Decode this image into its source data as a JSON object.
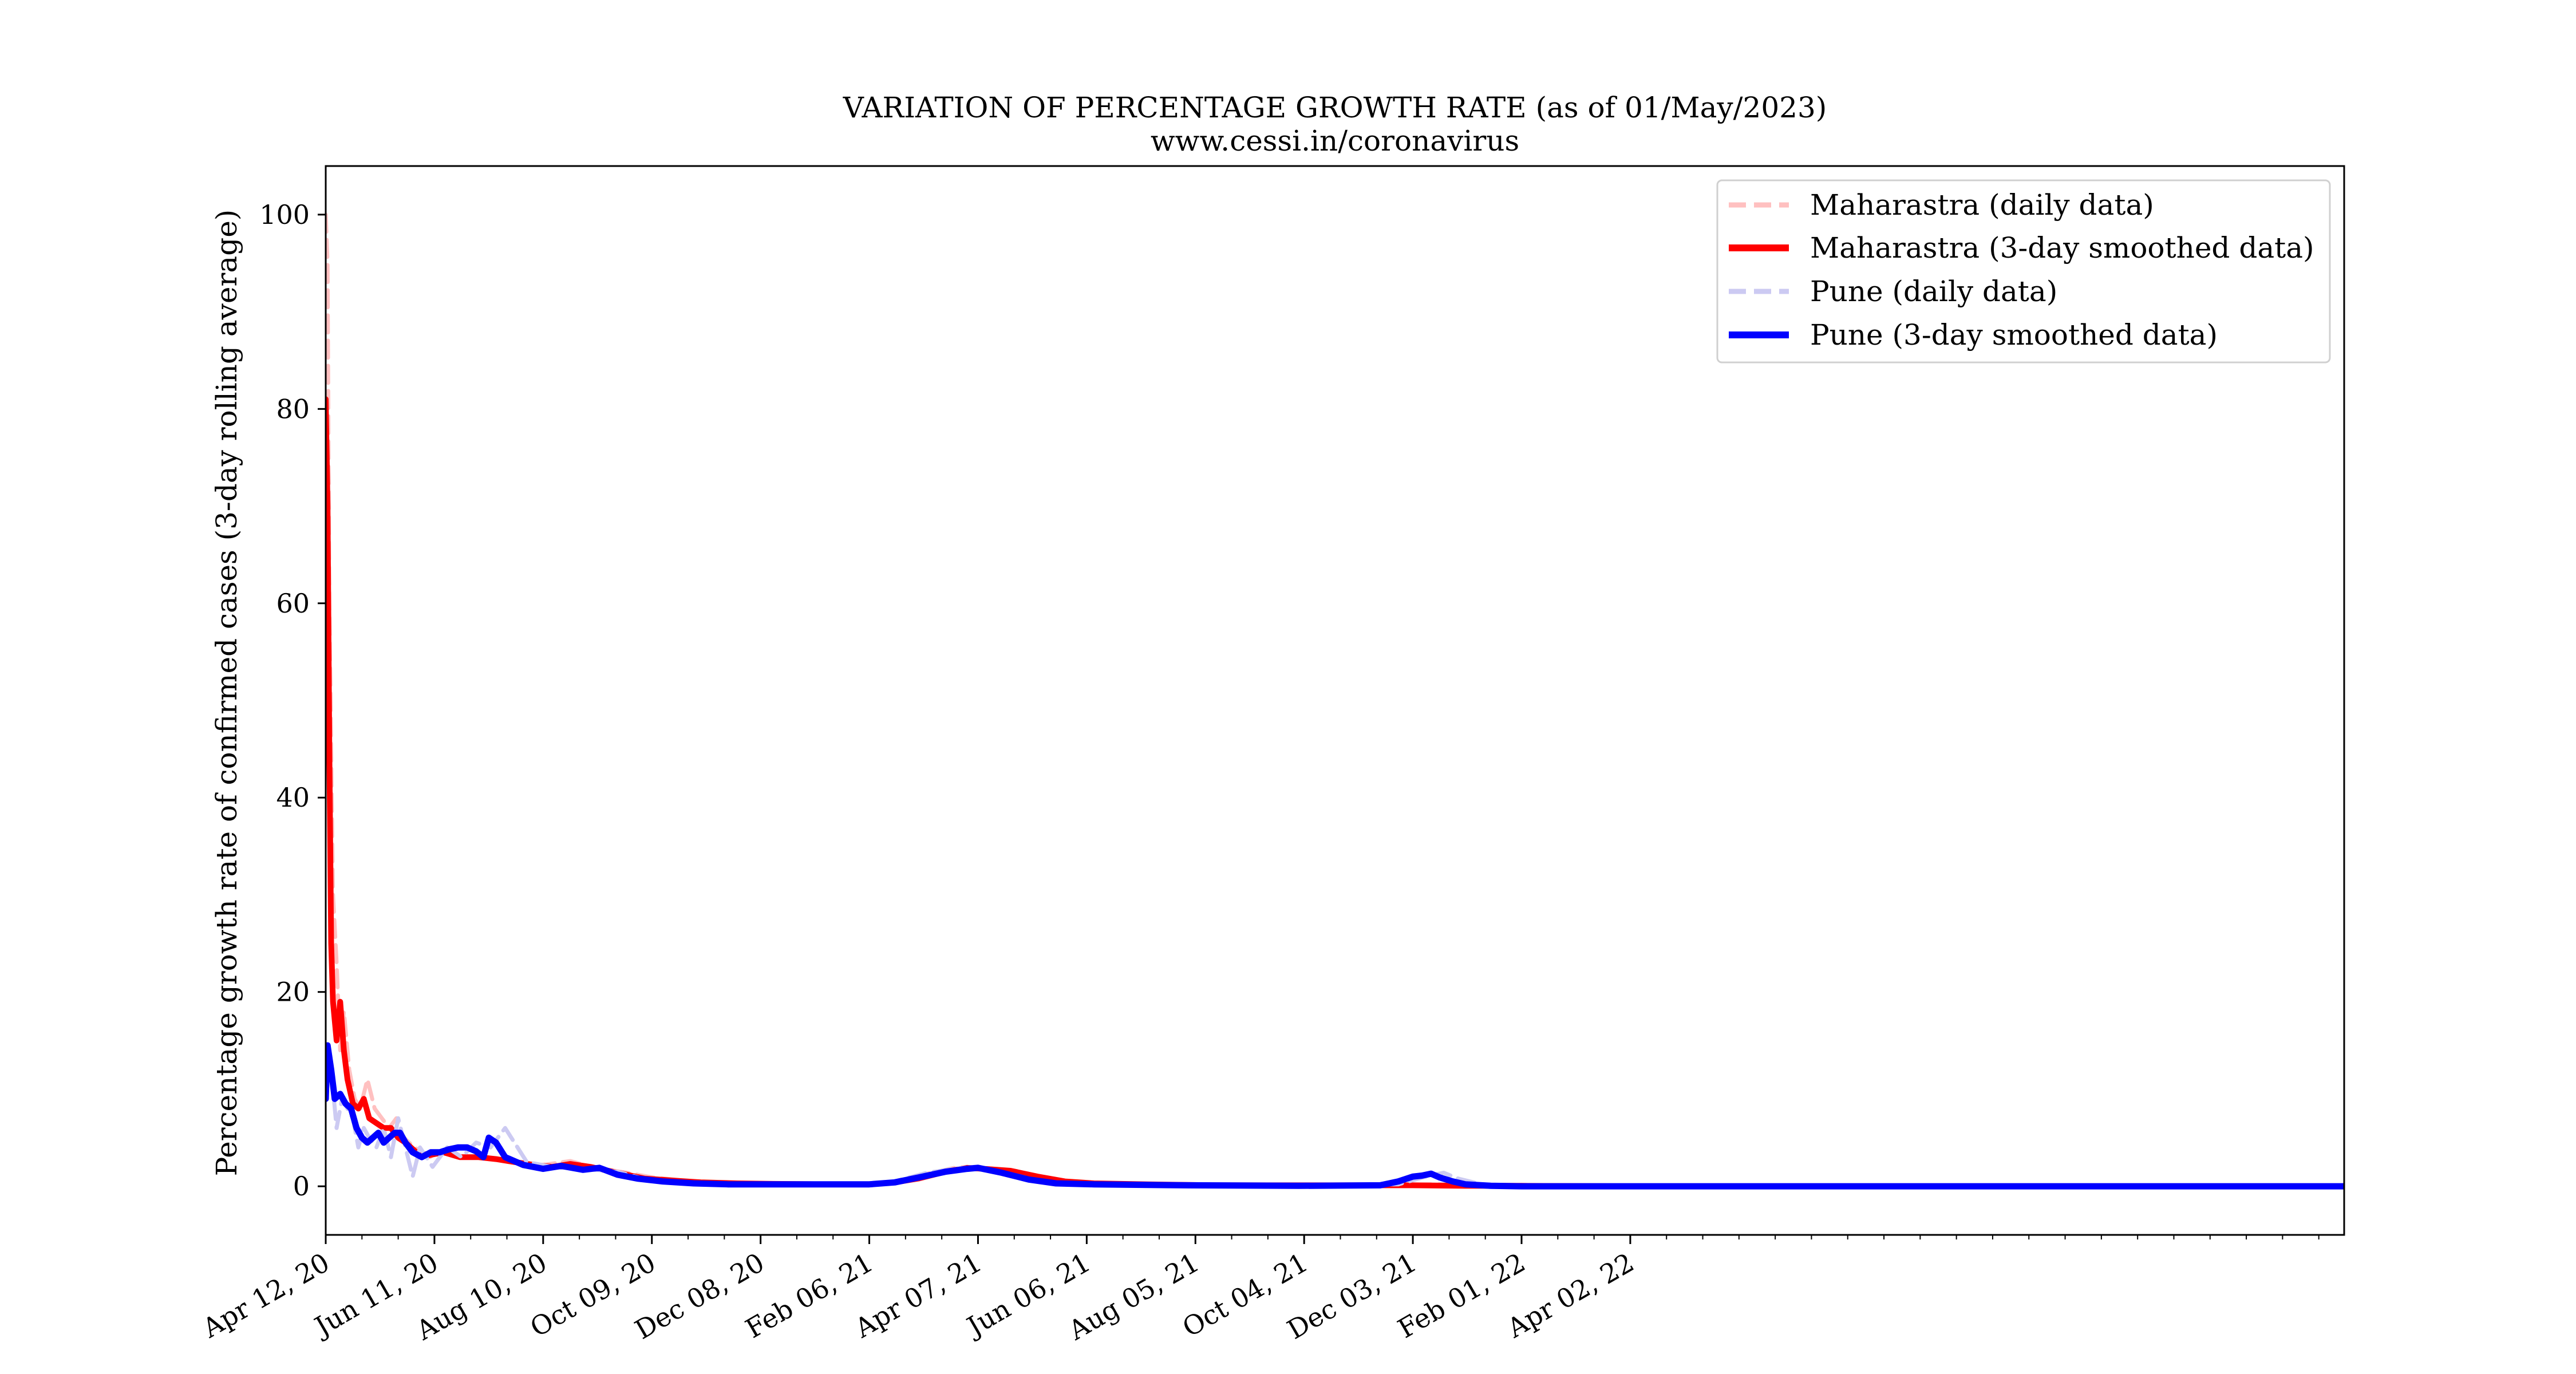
{
  "chart_data": {
    "type": "line",
    "title": "VARIATION OF PERCENTAGE GROWTH RATE (as of 01/May/2023)",
    "subtitle": "www.cessi.in/coronavirus",
    "xlabel": "",
    "ylabel": "Percentage growth rate of confirmed cases (3-day rolling average)",
    "xlim": [
      "2020-04-12",
      "2023-05-01"
    ],
    "ylim": [
      -5,
      105
    ],
    "x_tick_dates": [
      "2020-04-12",
      "2020-06-11",
      "2020-08-10",
      "2020-10-09",
      "2020-12-08",
      "2021-02-06",
      "2021-04-07",
      "2021-06-06",
      "2021-08-05",
      "2021-10-04",
      "2021-12-03",
      "2022-02-01",
      "2022-04-02"
    ],
    "x_tick_labels": [
      "Apr 12, 20",
      "Jun 11, 20",
      "Aug 10, 20",
      "Oct 09, 20",
      "Dec 08, 20",
      "Feb 06, 21",
      "Apr 07, 21",
      "Jun 06, 21",
      "Aug 05, 21",
      "Oct 04, 21",
      "Dec 03, 21",
      "Feb 01, 22",
      "Apr 02, 22"
    ],
    "y_ticks": [
      0,
      20,
      40,
      60,
      80,
      100
    ],
    "y_tick_labels": [
      "0",
      "20",
      "40",
      "60",
      "80",
      "100"
    ],
    "grid": false,
    "legend_position": "top-right",
    "series": [
      {
        "name": "Maharastra (daily data)",
        "color": "#ffc0c0",
        "style": "dashed",
        "x": [
          "2020-04-12",
          "2020-04-13",
          "2020-04-14",
          "2020-04-16",
          "2020-04-18",
          "2020-04-20",
          "2020-04-22",
          "2020-04-25",
          "2020-04-28",
          "2020-05-01",
          "2020-05-05",
          "2020-05-09",
          "2020-05-13",
          "2020-05-17",
          "2020-05-21",
          "2020-05-25",
          "2020-05-31",
          "2020-06-08",
          "2020-06-18",
          "2020-06-28",
          "2020-07-10",
          "2020-07-25",
          "2020-08-10",
          "2020-08-25",
          "2020-09-10",
          "2020-09-25",
          "2020-10-10",
          "2020-11-01",
          "2020-12-01",
          "2021-01-01",
          "2021-02-01",
          "2021-02-20",
          "2021-03-10",
          "2021-03-25",
          "2021-04-07",
          "2021-04-20",
          "2021-05-05",
          "2021-05-25",
          "2021-06-15",
          "2021-07-15",
          "2021-09-01",
          "2021-11-01",
          "2021-12-15",
          "2022-02-01",
          "2022-04-02"
        ],
        "y": [
          100,
          95,
          60,
          30,
          23,
          14,
          18,
          12,
          9,
          8,
          11,
          8,
          7,
          6,
          7,
          5,
          4,
          3,
          3.5,
          3,
          3,
          2.5,
          2.2,
          2.6,
          1.8,
          1.4,
          0.9,
          0.5,
          0.3,
          0.2,
          0.2,
          0.4,
          1.3,
          1.9,
          2.0,
          1.7,
          1.0,
          0.4,
          0.2,
          0.1,
          0.1,
          0.1,
          0.2,
          0.1,
          0.0
        ]
      },
      {
        "name": "Maharastra (3-day smoothed data)",
        "color": "#ff0000",
        "style": "solid",
        "x": [
          "2020-04-12",
          "2020-04-13",
          "2020-04-14",
          "2020-04-15",
          "2020-04-16",
          "2020-04-18",
          "2020-04-20",
          "2020-04-22",
          "2020-04-24",
          "2020-04-27",
          "2020-04-30",
          "2020-05-03",
          "2020-05-06",
          "2020-05-10",
          "2020-05-14",
          "2020-05-18",
          "2020-05-22",
          "2020-05-26",
          "2020-06-01",
          "2020-06-08",
          "2020-06-16",
          "2020-06-25",
          "2020-07-05",
          "2020-07-15",
          "2020-07-25",
          "2020-08-05",
          "2020-08-15",
          "2020-08-25",
          "2020-09-05",
          "2020-09-15",
          "2020-09-25",
          "2020-10-05",
          "2020-10-20",
          "2020-11-05",
          "2020-11-25",
          "2020-12-15",
          "2021-01-15",
          "2021-02-06",
          "2021-02-20",
          "2021-03-05",
          "2021-03-20",
          "2021-04-01",
          "2021-04-10",
          "2021-04-25",
          "2021-05-10",
          "2021-05-25",
          "2021-06-10",
          "2021-07-10",
          "2021-08-15",
          "2021-10-01",
          "2021-12-03",
          "2022-01-01",
          "2022-02-01",
          "2022-04-02"
        ],
        "y": [
          81,
          70,
          45,
          25,
          19,
          15,
          19,
          14,
          11,
          8.5,
          8,
          9,
          7,
          6.5,
          6,
          6,
          5,
          4.5,
          3.5,
          3.2,
          3.5,
          3,
          3,
          2.8,
          2.5,
          2.2,
          2.0,
          2.3,
          2.0,
          1.6,
          1.2,
          0.8,
          0.6,
          0.4,
          0.3,
          0.25,
          0.2,
          0.2,
          0.4,
          0.8,
          1.5,
          1.9,
          1.8,
          1.6,
          1.0,
          0.5,
          0.3,
          0.2,
          0.1,
          0.1,
          0.1,
          0.05,
          0.05,
          0.0
        ]
      },
      {
        "name": "Pune (daily data)",
        "color": "#cccaf2",
        "style": "dashed",
        "x": [
          "2020-04-12",
          "2020-04-14",
          "2020-04-16",
          "2020-04-18",
          "2020-04-21",
          "2020-04-24",
          "2020-04-27",
          "2020-04-30",
          "2020-05-03",
          "2020-05-06",
          "2020-05-10",
          "2020-05-14",
          "2020-05-18",
          "2020-05-22",
          "2020-05-26",
          "2020-05-30",
          "2020-06-03",
          "2020-06-10",
          "2020-06-18",
          "2020-06-26",
          "2020-07-04",
          "2020-07-12",
          "2020-07-20",
          "2020-08-01",
          "2020-08-15",
          "2020-09-01",
          "2020-09-20",
          "2020-10-10",
          "2020-11-01",
          "2020-12-01",
          "2021-01-01",
          "2021-02-01",
          "2021-02-20",
          "2021-03-10",
          "2021-03-25",
          "2021-04-05",
          "2021-04-20",
          "2021-05-10",
          "2021-06-01",
          "2021-08-01",
          "2021-10-01",
          "2021-11-25",
          "2021-12-10",
          "2021-12-20",
          "2021-12-28",
          "2022-01-10",
          "2022-02-01",
          "2022-04-02"
        ],
        "y": [
          9,
          14,
          10,
          6,
          9,
          8,
          7,
          4,
          6,
          5,
          4,
          6,
          3,
          7,
          4,
          1,
          4,
          2,
          4,
          3,
          4.5,
          4,
          6,
          2.5,
          2,
          1.8,
          1.5,
          0.5,
          0.3,
          0.2,
          0.2,
          0.2,
          0.5,
          1.4,
          1.8,
          2.0,
          1.5,
          0.6,
          0.2,
          0.1,
          0.1,
          0.2,
          1.0,
          1.4,
          0.8,
          0.2,
          0.05,
          0.0
        ]
      },
      {
        "name": "Pune (3-day smoothed data)",
        "color": "#0000ff",
        "style": "solid",
        "x": [
          "2020-04-12",
          "2020-04-13",
          "2020-04-15",
          "2020-04-17",
          "2020-04-20",
          "2020-04-23",
          "2020-04-26",
          "2020-04-29",
          "2020-05-02",
          "2020-05-05",
          "2020-05-08",
          "2020-05-11",
          "2020-05-14",
          "2020-05-17",
          "2020-05-20",
          "2020-05-23",
          "2020-05-26",
          "2020-05-30",
          "2020-06-04",
          "2020-06-09",
          "2020-06-14",
          "2020-06-19",
          "2020-06-24",
          "2020-06-29",
          "2020-07-04",
          "2020-07-08",
          "2020-07-11",
          "2020-07-15",
          "2020-07-20",
          "2020-07-30",
          "2020-08-10",
          "2020-08-20",
          "2020-09-01",
          "2020-09-10",
          "2020-09-20",
          "2020-10-01",
          "2020-10-15",
          "2020-11-01",
          "2020-11-20",
          "2020-12-15",
          "2021-01-15",
          "2021-02-06",
          "2021-02-20",
          "2021-03-05",
          "2021-03-20",
          "2021-04-01",
          "2021-04-07",
          "2021-04-20",
          "2021-05-05",
          "2021-05-20",
          "2021-06-10",
          "2021-08-01",
          "2021-10-01",
          "2021-11-15",
          "2021-11-25",
          "2021-12-03",
          "2021-12-08",
          "2021-12-13",
          "2021-12-18",
          "2021-12-25",
          "2022-01-01",
          "2022-01-15",
          "2022-02-01",
          "2022-03-28",
          "2023-05-01"
        ],
        "y": [
          9,
          14.5,
          12,
          9,
          9.5,
          8.5,
          8,
          6,
          5,
          4.5,
          5,
          5.5,
          4.5,
          5,
          5.5,
          5.5,
          4.5,
          3.5,
          3,
          3.5,
          3.5,
          3.8,
          4,
          4,
          3.6,
          3,
          5,
          4.5,
          3,
          2.2,
          1.8,
          2.1,
          1.7,
          1.9,
          1.2,
          0.8,
          0.5,
          0.3,
          0.2,
          0.2,
          0.2,
          0.2,
          0.4,
          0.9,
          1.5,
          1.8,
          1.9,
          1.4,
          0.7,
          0.3,
          0.2,
          0.1,
          0.05,
          0.1,
          0.5,
          1.0,
          1.1,
          1.3,
          0.9,
          0.5,
          0.2,
          0.05,
          0.0,
          0.0,
          0.0
        ]
      }
    ]
  }
}
